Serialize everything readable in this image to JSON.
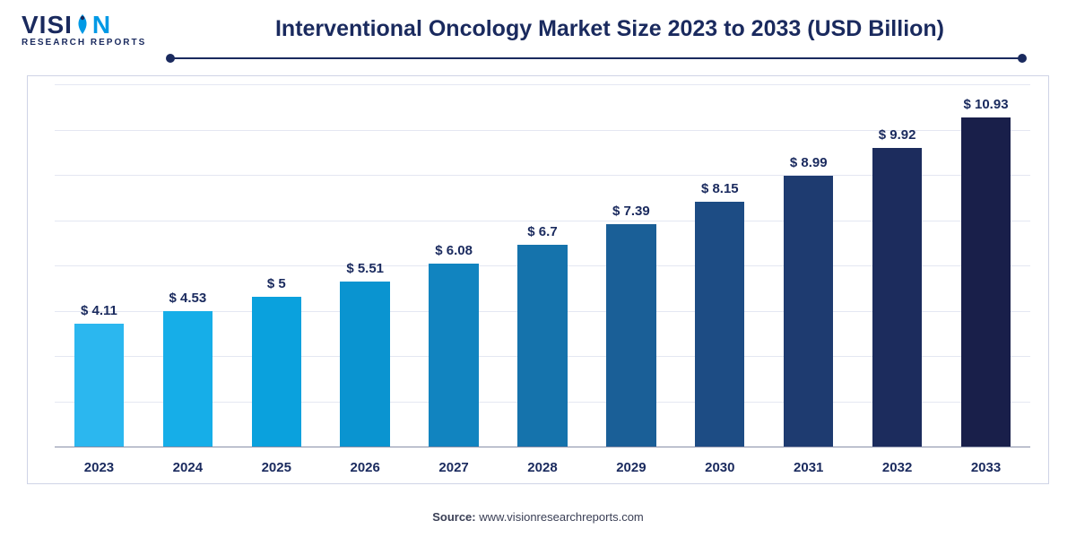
{
  "logo": {
    "line1_pre": "VISI",
    "line1_post": "N",
    "line2": "RESEARCH REPORTS"
  },
  "title": "Interventional Oncology Market Size 2023 to 2033 (USD Billion)",
  "source_label": "Source:",
  "source_value": "www.visionresearchreports.com",
  "chart": {
    "type": "bar",
    "y_max": 12,
    "grid_steps": 8,
    "grid_color": "#e4e7f2",
    "axis_color": "#888ea8",
    "background": "#ffffff",
    "title_color": "#1a2a5e",
    "label_fontsize": 15,
    "value_prefix": "$ ",
    "bar_width_pct": 56,
    "bars": [
      {
        "year": "2023",
        "value": 4.11,
        "label": "$ 4.11",
        "color": "#2bb7ef"
      },
      {
        "year": "2024",
        "value": 4.53,
        "label": "$ 4.53",
        "color": "#16aee8"
      },
      {
        "year": "2025",
        "value": 5,
        "label": "$ 5",
        "color": "#0aa1dd"
      },
      {
        "year": "2026",
        "value": 5.51,
        "label": "$ 5.51",
        "color": "#0a94d0"
      },
      {
        "year": "2027",
        "value": 6.08,
        "label": "$ 6.08",
        "color": "#1184c0"
      },
      {
        "year": "2028",
        "value": 6.7,
        "label": "$ 6.7",
        "color": "#1573ac"
      },
      {
        "year": "2029",
        "value": 7.39,
        "label": "$ 7.39",
        "color": "#1a5f97"
      },
      {
        "year": "2030",
        "value": 8.15,
        "label": "$ 8.15",
        "color": "#1d4c84"
      },
      {
        "year": "2031",
        "value": 8.99,
        "label": "$ 8.99",
        "color": "#1e3b70"
      },
      {
        "year": "2032",
        "value": 9.92,
        "label": "$ 9.92",
        "color": "#1c2c5d"
      },
      {
        "year": "2033",
        "value": 10.93,
        "label": "$ 10.93",
        "color": "#191f4a"
      }
    ]
  }
}
